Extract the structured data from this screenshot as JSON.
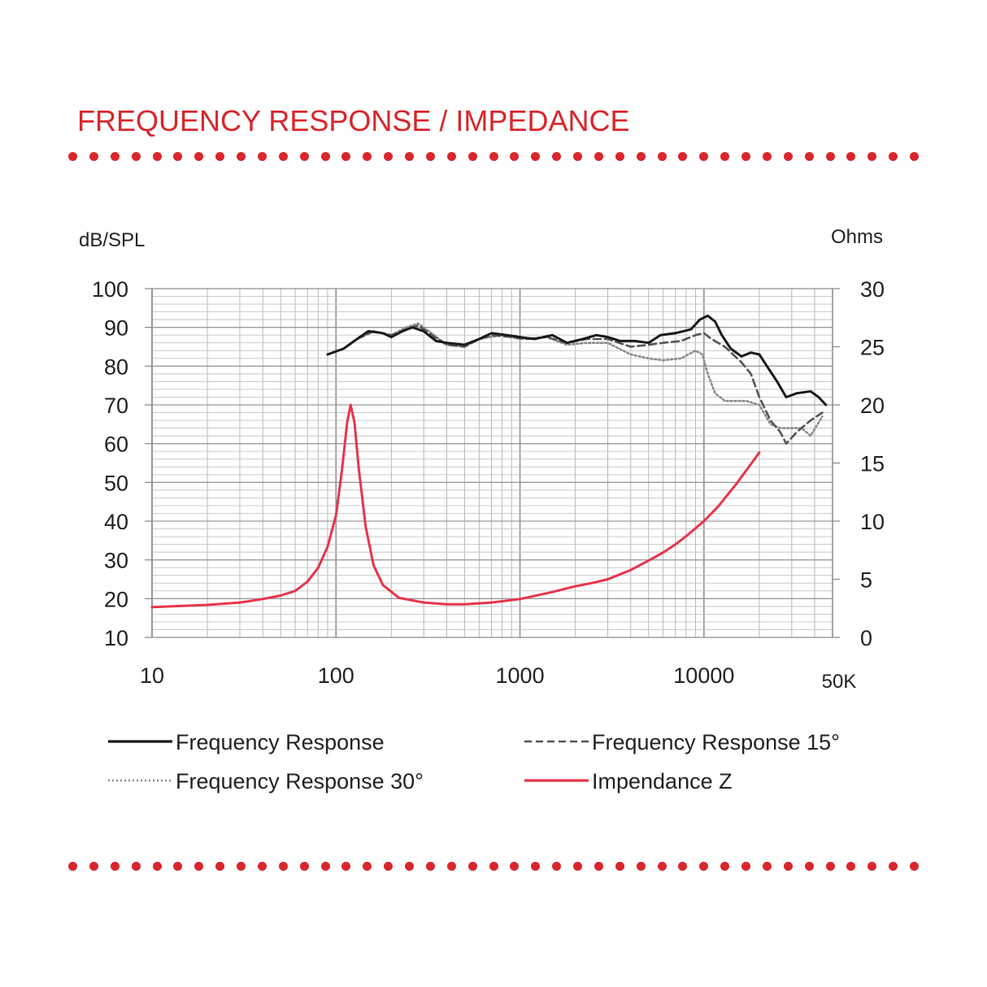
{
  "title": "FREQUENCY RESPONSE / IMPEDANCE",
  "colors": {
    "accent": "#d9262c",
    "grid": "#b0b0b0",
    "impedance": "#e8344a",
    "text": "#222222"
  },
  "chart_data": {
    "type": "line",
    "x_scale": "log",
    "xlim": [
      10,
      50000
    ],
    "x_ticks": [
      {
        "value": 10,
        "label": "10"
      },
      {
        "value": 100,
        "label": "100"
      },
      {
        "value": 1000,
        "label": "1000"
      },
      {
        "value": 10000,
        "label": "10000"
      },
      {
        "value": 50000,
        "label": "50K"
      }
    ],
    "left_axis": {
      "label": "dB/SPL",
      "ylim": [
        10,
        100
      ],
      "ticks": [
        100,
        90,
        80,
        70,
        60,
        50,
        40,
        30,
        20,
        10
      ]
    },
    "right_axis": {
      "label": "Ohms",
      "ylim": [
        0,
        30
      ],
      "ticks": [
        30,
        25,
        20,
        15,
        10,
        5,
        0
      ]
    },
    "grid": true,
    "legend_position": "bottom",
    "series": [
      {
        "name": "Frequency Response",
        "axis": "left",
        "style": "solid",
        "color": "#1a1a1a",
        "points": [
          [
            90,
            83
          ],
          [
            110,
            84.5
          ],
          [
            130,
            87
          ],
          [
            150,
            89
          ],
          [
            180,
            88.5
          ],
          [
            200,
            87.5
          ],
          [
            230,
            89
          ],
          [
            260,
            90
          ],
          [
            300,
            89
          ],
          [
            350,
            86.5
          ],
          [
            400,
            86
          ],
          [
            500,
            85.5
          ],
          [
            600,
            87
          ],
          [
            700,
            88.5
          ],
          [
            850,
            88
          ],
          [
            1000,
            87.5
          ],
          [
            1200,
            87
          ],
          [
            1500,
            88
          ],
          [
            1800,
            86
          ],
          [
            2200,
            87
          ],
          [
            2600,
            88
          ],
          [
            3000,
            87.5
          ],
          [
            3500,
            86.5
          ],
          [
            4200,
            86.5
          ],
          [
            5000,
            86
          ],
          [
            5800,
            88
          ],
          [
            7000,
            88.5
          ],
          [
            8500,
            89.5
          ],
          [
            9500,
            92
          ],
          [
            10500,
            93
          ],
          [
            11500,
            91.5
          ],
          [
            12500,
            88
          ],
          [
            14000,
            84.5
          ],
          [
            16000,
            82.5
          ],
          [
            18000,
            83.5
          ],
          [
            20000,
            83
          ],
          [
            22000,
            80
          ],
          [
            25000,
            76
          ],
          [
            28000,
            72
          ],
          [
            32000,
            73
          ],
          [
            38000,
            73.5
          ],
          [
            42000,
            72
          ],
          [
            46000,
            70
          ]
        ]
      },
      {
        "name": "Frequency Response 15°",
        "axis": "left",
        "style": "dashed",
        "color": "#555555",
        "points": [
          [
            130,
            87
          ],
          [
            160,
            89
          ],
          [
            200,
            88
          ],
          [
            240,
            89.5
          ],
          [
            280,
            90.5
          ],
          [
            320,
            88.5
          ],
          [
            400,
            85.5
          ],
          [
            500,
            85
          ],
          [
            600,
            87
          ],
          [
            700,
            88
          ],
          [
            900,
            87.5
          ],
          [
            1100,
            87
          ],
          [
            1400,
            87.5
          ],
          [
            1800,
            86
          ],
          [
            2300,
            87
          ],
          [
            3000,
            87
          ],
          [
            4000,
            85
          ],
          [
            5000,
            85.5
          ],
          [
            6000,
            86
          ],
          [
            7500,
            86.5
          ],
          [
            9000,
            88
          ],
          [
            10000,
            88.5
          ],
          [
            11000,
            87
          ],
          [
            13000,
            85
          ],
          [
            16000,
            81
          ],
          [
            18000,
            78
          ],
          [
            20000,
            72
          ],
          [
            23000,
            66
          ],
          [
            26000,
            63
          ],
          [
            28000,
            60
          ],
          [
            32000,
            63
          ],
          [
            38000,
            66
          ],
          [
            44000,
            68
          ]
        ]
      },
      {
        "name": "Frequency Response 30°",
        "axis": "left",
        "style": "dotted",
        "color": "#8a8a8a",
        "points": [
          [
            130,
            87
          ],
          [
            160,
            89
          ],
          [
            200,
            88
          ],
          [
            240,
            90
          ],
          [
            280,
            91
          ],
          [
            320,
            89
          ],
          [
            400,
            85.5
          ],
          [
            500,
            85
          ],
          [
            600,
            87
          ],
          [
            800,
            88
          ],
          [
            1000,
            87
          ],
          [
            1400,
            87.5
          ],
          [
            1800,
            85.5
          ],
          [
            2300,
            86
          ],
          [
            3000,
            86
          ],
          [
            4000,
            83
          ],
          [
            5000,
            82
          ],
          [
            6000,
            81.5
          ],
          [
            7500,
            82
          ],
          [
            9000,
            84
          ],
          [
            9800,
            83
          ],
          [
            10500,
            78
          ],
          [
            11500,
            73
          ],
          [
            13000,
            71
          ],
          [
            15000,
            71
          ],
          [
            17000,
            71
          ],
          [
            20000,
            70
          ],
          [
            23000,
            65
          ],
          [
            26000,
            64
          ],
          [
            30000,
            64
          ],
          [
            34000,
            64
          ],
          [
            38000,
            62
          ],
          [
            44000,
            67
          ]
        ]
      },
      {
        "name": "Impendance Z",
        "axis": "right",
        "style": "solid",
        "color": "#e8344a",
        "points": [
          [
            10,
            2.6
          ],
          [
            20,
            2.8
          ],
          [
            30,
            3
          ],
          [
            40,
            3.3
          ],
          [
            50,
            3.6
          ],
          [
            60,
            4
          ],
          [
            70,
            4.8
          ],
          [
            80,
            6
          ],
          [
            90,
            7.8
          ],
          [
            100,
            10.5
          ],
          [
            108,
            14.5
          ],
          [
            115,
            18.5
          ],
          [
            120,
            20
          ],
          [
            126,
            18.5
          ],
          [
            133,
            14.5
          ],
          [
            145,
            9.5
          ],
          [
            160,
            6.2
          ],
          [
            180,
            4.5
          ],
          [
            220,
            3.4
          ],
          [
            300,
            3
          ],
          [
            400,
            2.85
          ],
          [
            500,
            2.85
          ],
          [
            700,
            3
          ],
          [
            1000,
            3.3
          ],
          [
            1500,
            3.9
          ],
          [
            2000,
            4.4
          ],
          [
            2500,
            4.7
          ],
          [
            3000,
            5
          ],
          [
            4000,
            5.8
          ],
          [
            5000,
            6.6
          ],
          [
            6000,
            7.3
          ],
          [
            7000,
            8
          ],
          [
            8000,
            8.7
          ],
          [
            10000,
            10
          ],
          [
            12000,
            11.3
          ],
          [
            15000,
            13.2
          ],
          [
            18000,
            14.9
          ],
          [
            20000,
            15.9
          ]
        ]
      }
    ]
  },
  "legend": [
    {
      "label": "Frequency Response",
      "style": "solid",
      "color": "#1a1a1a"
    },
    {
      "label": "Frequency Response 15°",
      "style": "dashed",
      "color": "#555555"
    },
    {
      "label": "Frequency Response 30°",
      "style": "dotted",
      "color": "#8a8a8a"
    },
    {
      "label": "Impendance Z",
      "style": "solid",
      "color": "#e8344a"
    }
  ]
}
